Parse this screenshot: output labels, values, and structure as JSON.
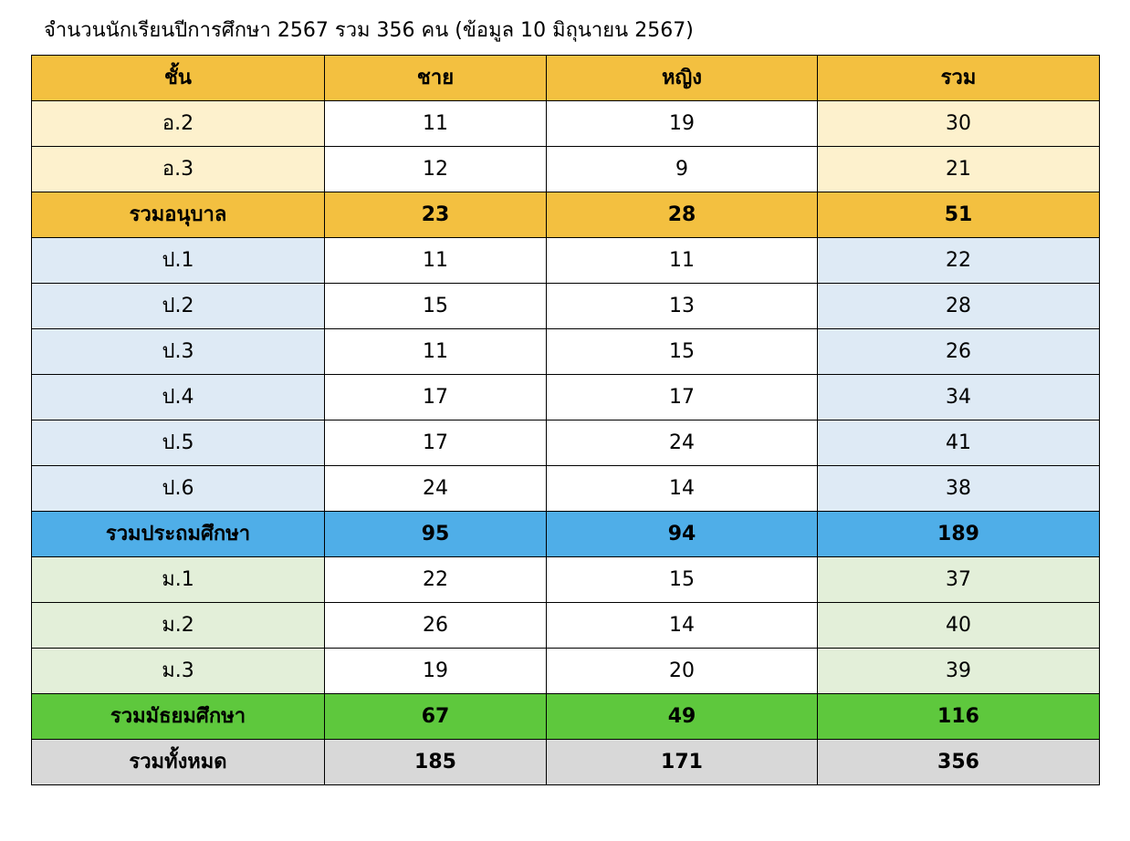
{
  "caption": "จำนวนนักเรียนปีการศึกษา 2567 รวม 356 คน   (ข้อมูล 10 มิถุนายน 2567)",
  "header": [
    "ชั้น",
    "ชาย",
    "หญิง",
    "รวม"
  ],
  "kindergarten": {
    "rows": [
      {
        "grade": "อ.2",
        "male": "11",
        "female": "19",
        "total": "30"
      },
      {
        "grade": "อ.3",
        "male": "12",
        "female": "9",
        "total": "21"
      }
    ],
    "subtotal": {
      "label": "รวมอนุบาล",
      "male": "23",
      "female": "28",
      "total": "51"
    }
  },
  "primary": {
    "rows": [
      {
        "grade": "ป.1",
        "male": "11",
        "female": "11",
        "total": "22"
      },
      {
        "grade": "ป.2",
        "male": "15",
        "female": "13",
        "total": "28"
      },
      {
        "grade": "ป.3",
        "male": "11",
        "female": "15",
        "total": "26"
      },
      {
        "grade": "ป.4",
        "male": "17",
        "female": "17",
        "total": "34"
      },
      {
        "grade": "ป.5",
        "male": "17",
        "female": "24",
        "total": "41"
      },
      {
        "grade": "ป.6",
        "male": "24",
        "female": "14",
        "total": "38"
      }
    ],
    "subtotal": {
      "label": "รวมประถมศึกษา",
      "male": "95",
      "female": "94",
      "total": "189"
    }
  },
  "secondary": {
    "rows": [
      {
        "grade": "ม.1",
        "male": "22",
        "female": "15",
        "total": "37"
      },
      {
        "grade": "ม.2",
        "male": "26",
        "female": "14",
        "total": "40"
      },
      {
        "grade": "ม.3",
        "male": "19",
        "female": "20",
        "total": "39"
      }
    ],
    "subtotal": {
      "label": "รวมมัธยมศึกษา",
      "male": "67",
      "female": "49",
      "total": "116"
    }
  },
  "grand_total": {
    "label": "รวมทั้งหมด",
    "male": "185",
    "female": "171",
    "total": "356"
  },
  "colors": {
    "header": "#f3c040",
    "kindergarten_subtotal": "#f3c040",
    "kindergarten_row": "#fdf1cd",
    "primary_subtotal": "#4faee8",
    "primary_row": "#deeaf5",
    "secondary_subtotal": "#5ec83d",
    "secondary_row": "#e3efd9",
    "grand_total": "#d8d8d8"
  }
}
